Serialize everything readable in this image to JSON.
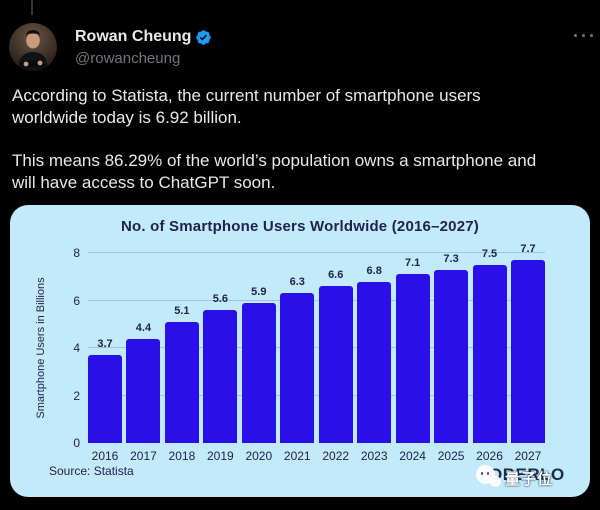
{
  "header": {
    "display_name": "Rowan Cheung",
    "handle": "@rowancheung",
    "verified": true
  },
  "tweet": {
    "paragraphs": [
      {
        "lines": [
          "According to Statista, the current number of smartphone users",
          "worldwide today is 6.92 billion."
        ]
      },
      {
        "lines": [
          "This means 86.29% of the world’s population owns a smartphone and",
          "will have access to ChatGPT soon."
        ]
      }
    ]
  },
  "chart_data": {
    "type": "bar",
    "title": "No. of Smartphone Users Worldwide (2016–2027)",
    "xlabel": "",
    "ylabel": "Smartphone Users in Billions",
    "categories": [
      "2016",
      "2017",
      "2018",
      "2019",
      "2020",
      "2021",
      "2022",
      "2023",
      "2024",
      "2025",
      "2026",
      "2027"
    ],
    "values": [
      3.7,
      4.4,
      5.1,
      5.6,
      5.9,
      6.3,
      6.6,
      6.8,
      7.1,
      7.3,
      7.5,
      7.7
    ],
    "yticks": [
      0,
      2,
      4,
      6,
      8
    ],
    "ylim": [
      0,
      8
    ],
    "grid": true,
    "legend_position": "none",
    "source": "Source: Statista",
    "watermark_brand": "OBERLO",
    "watermark_overlay": "量子位",
    "colors": {
      "bar": "#2b0fe8",
      "panel_bg": "#c2eafb",
      "text": "#20234f",
      "gridline": "#a3c6d6"
    }
  },
  "colors": {
    "page_bg": "#000000",
    "text_primary": "#e7e9ea",
    "text_secondary": "#71767b",
    "accent": "#1d9bf0"
  }
}
